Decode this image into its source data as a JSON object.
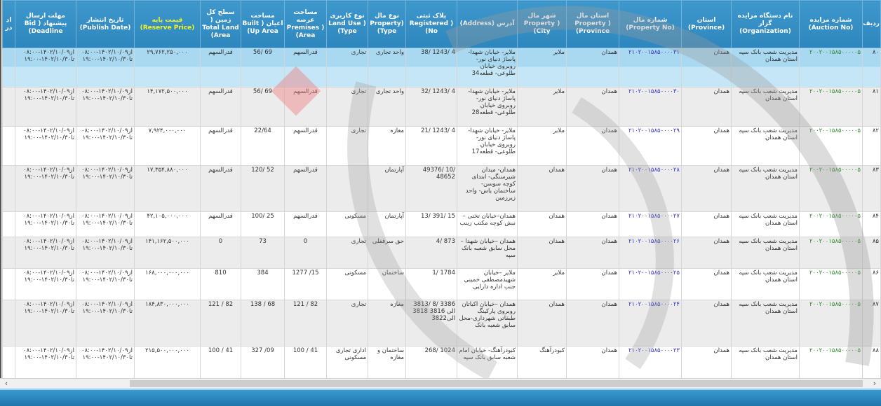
{
  "columns": [
    {
      "key": "radif",
      "label": "ردیف"
    },
    {
      "key": "auction_no",
      "label": "شماره مزایده (Auction No)"
    },
    {
      "key": "organization",
      "label": "نام دستگاه مزایده گزار (Organization)"
    },
    {
      "key": "province",
      "label": "استان (Province)"
    },
    {
      "key": "property_no",
      "label": "شماره مال (Property No)"
    },
    {
      "key": "property_province",
      "label": "استان مال Property ) (Province"
    },
    {
      "key": "property_city",
      "label": "شهر مال Property ) (City"
    },
    {
      "key": "address",
      "label": "آدرس (Address)"
    },
    {
      "key": "registered_no",
      "label": "پلاک ثبتی Registered ) (No"
    },
    {
      "key": "property_type",
      "label": "نوع مال Property) (Type"
    },
    {
      "key": "land_use",
      "label": "نوع کاربری Land Use ) (Type"
    },
    {
      "key": "premises_area",
      "label": "مساحت عرصه Premises ) (Area"
    },
    {
      "key": "built_area",
      "label": "مساحت اعیان ( Built (Up Area"
    },
    {
      "key": "land_area",
      "label": "سطح کل زمین ( Total Land (Area"
    },
    {
      "key": "reserve_price",
      "label": "قیمت پایه (Reserve Price)"
    },
    {
      "key": "publish_date",
      "label": "تاریخ انتشار (Publish Date)"
    },
    {
      "key": "deadline",
      "label": "مهلت ارسال پیشنهاد ( Bid (Deadline"
    },
    {
      "key": "extra",
      "label": "اد در"
    }
  ],
  "rows": [
    {
      "radif": "۸۰",
      "auction_no": "۲۰۰۲۰۰۱۵۸۵۰۰۰۰۰۵",
      "organization": "مدیریت شعب بانک سپه استان همدان",
      "province": "همدان",
      "property_no": "۲۱۰۲۰۰۱۵۸۵۰۰۰۰۳۱",
      "property_province": "همدان",
      "property_city": "ملایر",
      "address": "ملایر- خیابان شهدا- پاساژ دنیای نور- روبروی خیابان طلوعی- قطعه34",
      "registered_no": "38/ 1243/ 4",
      "property_type": "واحد تجاری",
      "land_use": "تجاری",
      "premises_area": "قدرالسهم",
      "built_area": "56/ 69",
      "land_area": "قدرالسهم",
      "reserve_price": "۲۹,۷۶۲,۲۵۰,۰۰۰",
      "publish_date": "از۱۴۰۲/۱۰/۰۹-۰۸:۰۰ تا۱۴۰۲/۱۰/۳۰-۱۹:۰۰",
      "deadline": "از۱۴۰۲/۱۰/۰۹-۰۸:۰۰ تا۱۴۰۲/۱۰/۳۰-۱۹:۰۰",
      "extra": "",
      "selected": true
    },
    {
      "radif": "۸۱",
      "auction_no": "۲۰۰۲۰۰۱۵۸۵۰۰۰۰۰۵",
      "organization": "مدیریت شعب بانک سپه استان همدان",
      "province": "همدان",
      "property_no": "۲۱۰۲۰۰۱۵۸۵۰۰۰۰۳۰",
      "property_province": "همدان",
      "property_city": "ملایر",
      "address": "ملایر- خیابان شهدا- پاساژ دنیای نور- روبروی خیابان طلوعی- قطعه28",
      "registered_no": "32/ 1243/ 4",
      "property_type": "واحد تجاری",
      "land_use": "تجاری",
      "premises_area": "قدرالسهم",
      "built_area": "56/ 69",
      "land_area": "قدرالسهم",
      "reserve_price": "۱۴,۱۷۲,۵۰۰,۰۰۰",
      "publish_date": "از۱۴۰۲/۱۰/۰۹-۰۸:۰۰ تا۱۴۰۲/۱۰/۳۰-۱۹:۰۰",
      "deadline": "از۱۴۰۲/۱۰/۰۹-۰۸:۰۰ تا۱۴۰۲/۱۰/۳۰-۱۹:۰۰",
      "extra": ""
    },
    {
      "radif": "۸۲",
      "auction_no": "۲۰۰۲۰۰۱۵۸۵۰۰۰۰۰۵",
      "organization": "مدیریت شعب بانک سپه استان همدان",
      "province": "همدان",
      "property_no": "۲۱۰۲۰۰۱۵۸۵۰۰۰۰۲۹",
      "property_province": "همدان",
      "property_city": "ملایر",
      "address": "ملایر- خیابان شهدا- پاساژ دنیای نور- روبروی خیابان طلوعی- قطعه17",
      "registered_no": "21/ 1243/ 4",
      "property_type": "مغازه",
      "land_use": "تجاری",
      "premises_area": "قدرالسهم",
      "built_area": "22/64",
      "land_area": "قدرالسهم",
      "reserve_price": "۷,۹۲۴,۰۰۰,۰۰۰",
      "publish_date": "از۱۴۰۲/۱۰/۰۹-۰۸:۰۰ تا۱۴۰۲/۱۰/۳۰-۱۹:۰۰",
      "deadline": "از۱۴۰۲/۱۰/۰۹-۰۸:۰۰ تا۱۴۰۲/۱۰/۳۰-۱۹:۰۰",
      "extra": ""
    },
    {
      "radif": "۸۳",
      "auction_no": "۲۰۰۲۰۰۱۵۸۵۰۰۰۰۰۵",
      "organization": "مدیریت شعب بانک سپه استان همدان",
      "province": "همدان",
      "property_no": "۲۱۰۲۰۰۱۵۸۵۰۰۰۰۲۸",
      "property_province": "همدان",
      "property_city": "همدان",
      "address": "همدان- میدان شیرسنگی- ابتدای کوچه سوسن- ساختمان یاس- واحد زیرزمین",
      "registered_no": "49376/ 10/ 48652",
      "property_type": "آپارتمان",
      "land_use": "",
      "premises_area": "قدرالسهم",
      "built_area": "120/ 52",
      "land_area": "قدرالسهم",
      "reserve_price": "۱۷,۳۵۴,۸۸۰,۰۰۰",
      "publish_date": "از۱۴۰۲/۱۰/۰۹-۰۸:۰۰ تا۱۴۰۲/۱۰/۳۰-۱۹:۰۰",
      "deadline": "از۱۴۰۲/۱۰/۰۹-۰۸:۰۰ تا۱۴۰۲/۱۰/۳۰-۱۹:۰۰",
      "extra": ""
    },
    {
      "radif": "۸۴",
      "auction_no": "۲۰۰۲۰۰۱۵۸۵۰۰۰۰۰۵",
      "organization": "مدیریت شعب بانک سپه استان همدان",
      "province": "همدان",
      "property_no": "۲۱۰۲۰۰۱۵۸۵۰۰۰۰۲۷",
      "property_province": "همدان",
      "property_city": "همدان",
      "address": "همدان–خیابان تختی – نبش کوچه مکتب زینب",
      "registered_no": "13/ 391/ 15",
      "property_type": "آپارتمان",
      "land_use": "مسکونی",
      "premises_area": "قدرالسهم",
      "built_area": "100/ 25",
      "land_area": "قدرالسهم",
      "reserve_price": "۴۲,۱۰۵,۰۰۰,۰۰۰",
      "publish_date": "از۱۴۰۲/۱۰/۰۹-۰۸:۰۰ تا۱۴۰۲/۱۰/۳۰-۱۹:۰۰",
      "deadline": "از۱۴۰۲/۱۰/۰۹-۰۸:۰۰ تا۱۴۰۲/۱۰/۳۰-۱۹:۰۰",
      "extra": ""
    },
    {
      "radif": "۸۵",
      "auction_no": "۲۰۰۲۰۰۱۵۸۵۰۰۰۰۰۵",
      "organization": "مدیریت شعب بانک سپه استان همدان",
      "province": "همدان",
      "property_no": "۲۱۰۲۰۰۱۵۸۵۰۰۰۰۲۶",
      "property_province": "همدان",
      "property_city": "همدان",
      "address": "همدان –خیابان شهدا –محل سابق شعبه بانک سپه",
      "registered_no": "4/ 873",
      "property_type": "حق سرقفلی",
      "land_use": "تجاری",
      "premises_area": "0",
      "built_area": "73",
      "land_area": "0",
      "reserve_price": "۱۴۱,۱۶۲,۵۰۰,۰۰۰",
      "publish_date": "از۱۴۰۲/۱۰/۰۹-۰۸:۰۰ تا۱۴۰۲/۱۰/۳۰-۱۹:۰۰",
      "deadline": "از۱۴۰۲/۱۰/۰۹-۰۸:۰۰ تا۱۴۰۲/۱۰/۳۰-۱۹:۰۰",
      "extra": ""
    },
    {
      "radif": "۸۶",
      "auction_no": "۲۰۰۲۰۰۱۵۸۵۰۰۰۰۰۵",
      "organization": "مدیریت شعب بانک سپه استان همدان",
      "province": "همدان",
      "property_no": "۲۱۰۲۰۰۱۵۸۵۰۰۰۰۲۵",
      "property_province": "همدان",
      "property_city": "ملایر",
      "address": "ملایر –خیابان شهیدمصطفی خمینی جنب اداره دارایی",
      "registered_no": "1/ 1784",
      "property_type": "ساختمان",
      "land_use": "مسکونی",
      "premises_area": "1277 /15",
      "built_area": "384",
      "land_area": "810",
      "reserve_price": "۱۶۸,۰۰۰,۰۰۰,۰۰۰",
      "publish_date": "از۱۴۰۲/۱۰/۰۹-۰۸:۰۰ تا۱۴۰۲/۱۰/۳۰-۱۹:۰۰",
      "deadline": "از۱۴۰۲/۱۰/۰۹-۰۸:۰۰ تا۱۴۰۲/۱۰/۳۰-۱۹:۰۰",
      "extra": ""
    },
    {
      "radif": "۸۷",
      "auction_no": "۲۰۰۲۰۰۱۵۸۵۰۰۰۰۰۵",
      "organization": "مدیریت شعب بانک سپه استان همدان",
      "province": "همدان",
      "property_no": "۲۱۰۲۰۰۱۵۸۵۰۰۰۰۲۴",
      "property_province": "همدان",
      "property_city": "همدان",
      "address": "همدان –خیابان اکباتان روبروی پارکینگ طبقاتی شهرداری-محل سابق شعبه بانک",
      "registered_no": "3813/ 8/ 3386 الی 3816 3818 الی3822",
      "property_type": "مغازه",
      "land_use": "تجاری",
      "premises_area": "121 / 82",
      "built_area": "138 / 68",
      "land_area": "121 / 82",
      "reserve_price": "۱۸۴,۸۳۰,۰۰۰,۰۰۰",
      "publish_date": "از۱۴۰۲/۱۰/۰۹-۰۸:۰۰ تا۱۴۰۲/۱۰/۳۰-۱۹:۰۰",
      "deadline": "از۱۴۰۲/۱۰/۰۹-۰۸:۰۰ تا۱۴۰۲/۱۰/۳۰-۱۹:۰۰",
      "extra": ""
    },
    {
      "radif": "۸۸",
      "auction_no": "۲۰۰۲۰۰۱۵۸۵۰۰۰۰۰۵",
      "organization": "مدیریت شعب بانک سپه استان همدان",
      "province": "همدان",
      "property_no": "۲۱۰۲۰۰۱۵۸۵۰۰۰۰۲۳",
      "property_province": "همدان",
      "property_city": "کبودرآهنگ",
      "address": "کبودرآهنگ- خیابان امام شعبه سابق بانک سپه",
      "registered_no": "268/ 1024",
      "property_type": "ساختمان و مغازه",
      "land_use": "اداری تجاری مسکونی",
      "premises_area": "100 / 41",
      "built_area": "327 /09",
      "land_area": "100 / 41",
      "reserve_price": "۲۱۵,۵۰۰,۰۰۰,۰۰۰",
      "publish_date": "از۱۴۰۲/۱۰/۰۹-۰۸:۰۰ تا۱۴۰۲/۱۰/۳۰-۱۹:۰۰",
      "deadline": "از۱۴۰۲/۱۰/۰۹-۰۸:۰۰ تا۱۴۰۲/۱۰/۳۰-۱۹:۰۰",
      "extra": ""
    }
  ],
  "scrollbar": {
    "left_arrow": "‹",
    "right_arrow": "›"
  },
  "colors": {
    "header_bg": "#2d86bd",
    "reserve_price_header": "#f4f422",
    "auction_no": "#2e8b2e",
    "property_no": "#3636c8",
    "selected_row": "#a8d9f1"
  }
}
